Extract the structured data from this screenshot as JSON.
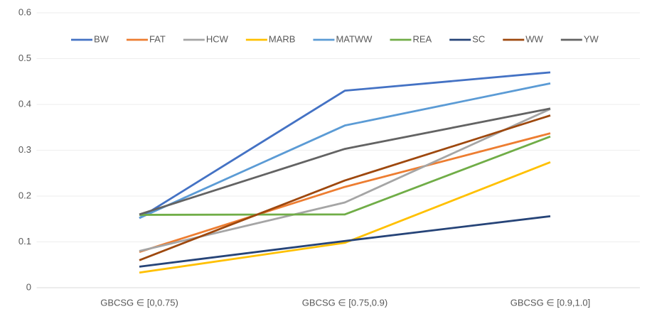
{
  "chart_data": {
    "type": "line",
    "categories": [
      "GBCSG ∈ [0,0.75)",
      "GBCSG ∈ [0.75,0.9)",
      "GBCSG ∈ [0.9,1.0]"
    ],
    "series": [
      {
        "name": "BW",
        "color": "#4472c4",
        "values": [
          0.152,
          0.43,
          0.47
        ]
      },
      {
        "name": "FAT",
        "color": "#ed7d31",
        "values": [
          0.078,
          0.22,
          0.337
        ]
      },
      {
        "name": "HCW",
        "color": "#a5a5a5",
        "values": [
          0.08,
          0.186,
          0.39
        ]
      },
      {
        "name": "MARB",
        "color": "#ffc000",
        "values": [
          0.033,
          0.098,
          0.274
        ]
      },
      {
        "name": "MATWW",
        "color": "#5b9bd5",
        "values": [
          0.152,
          0.354,
          0.446
        ]
      },
      {
        "name": "REA",
        "color": "#70ad47",
        "values": [
          0.159,
          0.16,
          0.33
        ]
      },
      {
        "name": "SC",
        "color": "#264478",
        "values": [
          0.046,
          0.102,
          0.156
        ]
      },
      {
        "name": "WW",
        "color": "#9e480e",
        "values": [
          0.06,
          0.234,
          0.376
        ]
      },
      {
        "name": "YW",
        "color": "#636363",
        "values": [
          0.16,
          0.303,
          0.391
        ]
      }
    ],
    "ylim": [
      0,
      0.6
    ],
    "yticks": [
      0,
      0.1,
      0.2,
      0.3,
      0.4,
      0.5,
      0.6
    ],
    "grid": true,
    "legend": "top"
  }
}
